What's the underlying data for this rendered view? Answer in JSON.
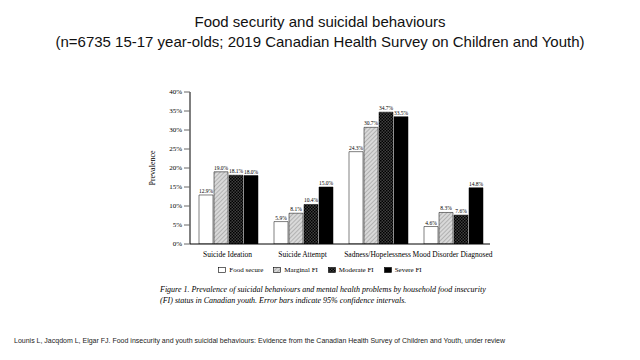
{
  "chart_data": {
    "type": "bar",
    "title": "Food security and suicidal behaviours",
    "subtitle": "(n=6735 15-17 year-olds; 2019 Canadian Health Survey on Children and Youth)",
    "y_label": "Prevalence",
    "categories": [
      "Suicide Ideation",
      "Suicide Attempt",
      "Sadness/Hopelessness",
      "Mood Disorder Diagnosed"
    ],
    "series": [
      {
        "name": "Food secure",
        "color": "#ffffff",
        "values": [
          12.9,
          5.9,
          24.3,
          4.6
        ],
        "value_labels": [
          "12.9%",
          "5.9%",
          "24.3%",
          "4.6%"
        ]
      },
      {
        "name": "Marginal FI",
        "color": "#d9d9d9",
        "values": [
          19.0,
          8.1,
          30.7,
          8.3
        ],
        "value_labels": [
          "19.0%",
          "8.1%",
          "30.7%",
          "8.3%"
        ]
      },
      {
        "name": "Moderate FI",
        "color": "#404040",
        "values": [
          18.1,
          10.4,
          34.7,
          7.6
        ],
        "value_labels": [
          "18.1%",
          "10.4%",
          "34.7%",
          "7.6%"
        ]
      },
      {
        "name": "Severe FI",
        "color": "#000000",
        "values": [
          18.0,
          15.0,
          33.5,
          14.8
        ],
        "value_labels": [
          "18.0%",
          "15.0%",
          "33.5%",
          "14.8%"
        ]
      }
    ],
    "ylim": [
      0,
      40
    ],
    "yticks": [
      {
        "value": 0,
        "label": "0%"
      },
      {
        "value": 5,
        "label": "5%"
      },
      {
        "value": 10,
        "label": "10%"
      },
      {
        "value": 15,
        "label": "15%"
      },
      {
        "value": 20,
        "label": "20%"
      },
      {
        "value": 25,
        "label": "25%"
      },
      {
        "value": 30,
        "label": "30%"
      },
      {
        "value": 35,
        "label": "35%"
      },
      {
        "value": 40,
        "label": "40%"
      }
    ],
    "grid": false,
    "legend": "bottom",
    "data_labels": true,
    "annotations": [
      "Figure 1. Prevalence of suicidal behaviours and mental health problems by household food insecurity (FI) status in Canadian youth. Error bars indicate 95% confidence intervals.",
      "Lounis L, Jacqdom L, Elgar FJ. Food insecurity and youth suicidal behaviours: Evidence from the Canadian Health Survey of Children and Youth, under review"
    ]
  }
}
